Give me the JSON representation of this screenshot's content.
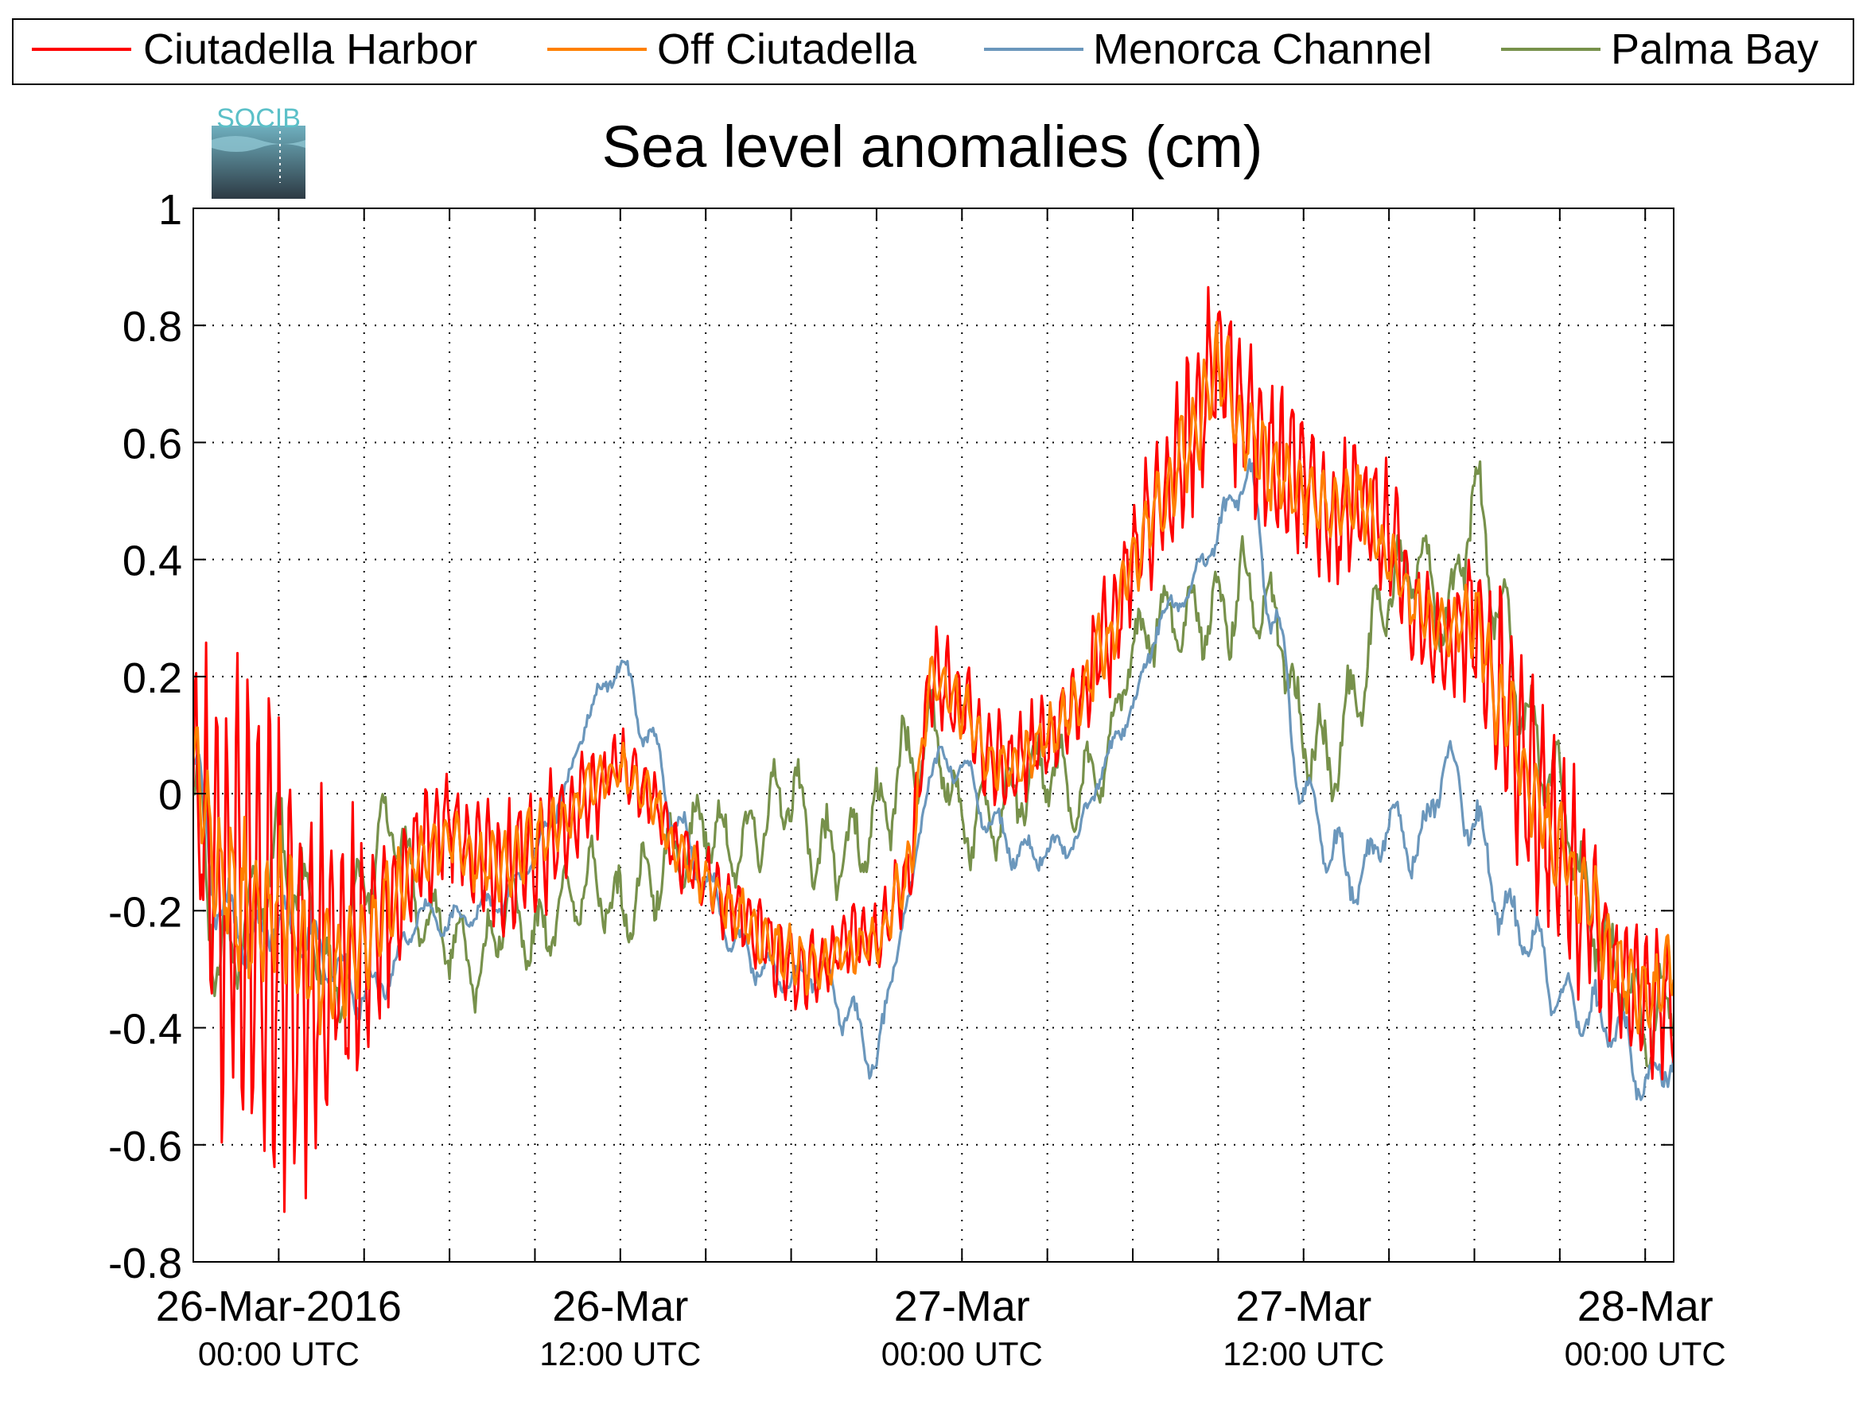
{
  "colors": {
    "ciutadella_harbor": "#ff0000",
    "off_ciutadella": "#ff8000",
    "menorca_channel": "#6b97bc",
    "palma_bay": "#77914b",
    "logo_text": "#5bc0c8"
  },
  "logo": {
    "text": "SOCIB",
    "icon": "socib-logo-icon"
  },
  "chart_data": {
    "type": "line",
    "title": "Sea level anomalies (cm)",
    "xlabel": "",
    "ylabel": "",
    "grid": true,
    "legend_position": "top",
    "x_axis": {
      "range": [
        "2016-03-25T21:00Z",
        "2016-03-28T01:00Z"
      ],
      "ticks_hours_utc": [
        "2016-03-25T21:00Z",
        "2016-03-26T00:00Z",
        "2016-03-26T03:00Z",
        "2016-03-26T06:00Z",
        "2016-03-26T09:00Z",
        "2016-03-26T12:00Z",
        "2016-03-26T15:00Z",
        "2016-03-26T18:00Z",
        "2016-03-26T21:00Z",
        "2016-03-27T00:00Z",
        "2016-03-27T03:00Z",
        "2016-03-27T06:00Z",
        "2016-03-27T09:00Z",
        "2016-03-27T12:00Z",
        "2016-03-27T15:00Z",
        "2016-03-27T18:00Z",
        "2016-03-27T21:00Z",
        "2016-03-28T00:00Z",
        "2016-03-28T03:00Z"
      ],
      "labels": [
        {
          "at": "2016-03-26T00:00Z",
          "date": "26-Mar-2016",
          "time": "00:00 UTC"
        },
        {
          "at": "2016-03-26T12:00Z",
          "date": "26-Mar",
          "time": "12:00 UTC"
        },
        {
          "at": "2016-03-27T00:00Z",
          "date": "27-Mar",
          "time": "00:00 UTC"
        },
        {
          "at": "2016-03-27T12:00Z",
          "date": "27-Mar",
          "time": "12:00 UTC"
        },
        {
          "at": "2016-03-28T00:00Z",
          "date": "28-Mar",
          "time": "00:00 UTC"
        }
      ]
    },
    "y_axis": {
      "range": [
        -0.8,
        1
      ],
      "ticks": [
        -0.8,
        -0.6,
        -0.4,
        -0.2,
        0,
        0.2,
        0.4,
        0.6,
        0.8,
        1
      ],
      "tick_labels": [
        "-0.8",
        "-0.6",
        "-0.4",
        "-0.2",
        "0",
        "0.2",
        "0.4",
        "0.6",
        "0.8",
        "1"
      ]
    },
    "series": [
      {
        "name": "Ciutadella Harbor",
        "color": "#ff0000",
        "x": [
          "2016-03-25T21:00Z",
          "2016-03-25T22:00Z",
          "2016-03-25T23:00Z",
          "2016-03-26T00:00Z",
          "2016-03-26T01:00Z",
          "2016-03-26T02:00Z",
          "2016-03-26T03:00Z",
          "2016-03-26T04:00Z",
          "2016-03-26T05:00Z",
          "2016-03-26T06:00Z",
          "2016-03-26T07:00Z",
          "2016-03-26T08:00Z",
          "2016-03-26T09:00Z",
          "2016-03-26T10:00Z",
          "2016-03-26T11:00Z",
          "2016-03-26T12:00Z",
          "2016-03-26T13:00Z",
          "2016-03-26T14:00Z",
          "2016-03-26T15:00Z",
          "2016-03-26T16:00Z",
          "2016-03-26T17:00Z",
          "2016-03-26T18:00Z",
          "2016-03-26T19:00Z",
          "2016-03-26T20:00Z",
          "2016-03-26T21:00Z",
          "2016-03-26T22:00Z",
          "2016-03-26T23:00Z",
          "2016-03-27T00:00Z",
          "2016-03-27T01:00Z",
          "2016-03-27T02:00Z",
          "2016-03-27T03:00Z",
          "2016-03-27T04:00Z",
          "2016-03-27T05:00Z",
          "2016-03-27T06:00Z",
          "2016-03-27T07:00Z",
          "2016-03-27T08:00Z",
          "2016-03-27T09:00Z",
          "2016-03-27T10:00Z",
          "2016-03-27T11:00Z",
          "2016-03-27T12:00Z",
          "2016-03-27T13:00Z",
          "2016-03-27T14:00Z",
          "2016-03-27T15:00Z",
          "2016-03-27T16:00Z",
          "2016-03-27T17:00Z",
          "2016-03-27T18:00Z",
          "2016-03-27T19:00Z",
          "2016-03-27T20:00Z",
          "2016-03-27T21:00Z",
          "2016-03-27T22:00Z",
          "2016-03-27T23:00Z",
          "2016-03-28T00:00Z",
          "2016-03-28T01:00Z"
        ],
        "values": [
          0.0,
          -0.15,
          -0.2,
          -0.25,
          -0.3,
          -0.3,
          -0.25,
          -0.2,
          -0.1,
          -0.05,
          -0.1,
          -0.15,
          -0.1,
          -0.05,
          0.0,
          0.05,
          0.0,
          -0.1,
          -0.15,
          -0.2,
          -0.25,
          -0.3,
          -0.3,
          -0.25,
          -0.25,
          -0.15,
          0.2,
          0.15,
          0.05,
          0.05,
          0.1,
          0.15,
          0.25,
          0.4,
          0.5,
          0.6,
          0.75,
          0.65,
          0.55,
          0.55,
          0.45,
          0.5,
          0.45,
          0.3,
          0.25,
          0.3,
          0.15,
          0.0,
          -0.1,
          -0.2,
          -0.3,
          -0.35,
          -0.35
        ],
        "amplitude": [
          0.25,
          0.35,
          0.45,
          0.45,
          0.35,
          0.25,
          0.2,
          0.15,
          0.1,
          0.1,
          0.1,
          0.12,
          0.12,
          0.1,
          0.08,
          0.06,
          0.06,
          0.06,
          0.06,
          0.07,
          0.07,
          0.07,
          0.06,
          0.06,
          0.06,
          0.08,
          0.08,
          0.08,
          0.08,
          0.08,
          0.08,
          0.08,
          0.1,
          0.12,
          0.12,
          0.14,
          0.15,
          0.14,
          0.14,
          0.13,
          0.12,
          0.12,
          0.1,
          0.1,
          0.1,
          0.14,
          0.18,
          0.2,
          0.18,
          0.15,
          0.12,
          0.12,
          0.12
        ]
      },
      {
        "name": "Off Ciutadella",
        "color": "#ff8000",
        "x": [
          "2016-03-25T21:00Z",
          "2016-03-25T22:00Z",
          "2016-03-25T23:00Z",
          "2016-03-26T00:00Z",
          "2016-03-26T01:00Z",
          "2016-03-26T02:00Z",
          "2016-03-26T03:00Z",
          "2016-03-26T04:00Z",
          "2016-03-26T05:00Z",
          "2016-03-26T06:00Z",
          "2016-03-26T07:00Z",
          "2016-03-26T08:00Z",
          "2016-03-26T09:00Z",
          "2016-03-26T10:00Z",
          "2016-03-26T11:00Z",
          "2016-03-26T12:00Z",
          "2016-03-26T13:00Z",
          "2016-03-26T14:00Z",
          "2016-03-26T15:00Z",
          "2016-03-26T16:00Z",
          "2016-03-26T17:00Z",
          "2016-03-26T18:00Z",
          "2016-03-26T19:00Z",
          "2016-03-26T20:00Z",
          "2016-03-26T21:00Z",
          "2016-03-26T22:00Z",
          "2016-03-26T23:00Z",
          "2016-03-27T00:00Z",
          "2016-03-27T01:00Z",
          "2016-03-27T02:00Z",
          "2016-03-27T03:00Z",
          "2016-03-27T04:00Z",
          "2016-03-27T05:00Z",
          "2016-03-27T06:00Z",
          "2016-03-27T07:00Z",
          "2016-03-27T08:00Z",
          "2016-03-27T09:00Z",
          "2016-03-27T10:00Z",
          "2016-03-27T11:00Z",
          "2016-03-27T12:00Z",
          "2016-03-27T13:00Z",
          "2016-03-27T14:00Z",
          "2016-03-27T15:00Z",
          "2016-03-27T16:00Z",
          "2016-03-27T17:00Z",
          "2016-03-27T18:00Z",
          "2016-03-27T19:00Z",
          "2016-03-27T20:00Z",
          "2016-03-27T21:00Z",
          "2016-03-27T22:00Z",
          "2016-03-27T23:00Z",
          "2016-03-28T00:00Z",
          "2016-03-28T01:00Z"
        ],
        "values": [
          0.05,
          -0.15,
          -0.2,
          -0.2,
          -0.28,
          -0.3,
          -0.25,
          -0.18,
          -0.1,
          -0.08,
          -0.12,
          -0.12,
          -0.08,
          -0.05,
          0.02,
          0.04,
          0.0,
          -0.1,
          -0.15,
          -0.2,
          -0.25,
          -0.28,
          -0.3,
          -0.27,
          -0.25,
          -0.15,
          0.2,
          0.15,
          0.05,
          0.05,
          0.1,
          0.15,
          0.25,
          0.4,
          0.5,
          0.6,
          0.72,
          0.62,
          0.55,
          0.52,
          0.48,
          0.5,
          0.4,
          0.32,
          0.28,
          0.3,
          0.15,
          0.0,
          -0.1,
          -0.18,
          -0.3,
          -0.35,
          -0.3
        ],
        "amplitude": [
          0.1,
          0.12,
          0.15,
          0.15,
          0.12,
          0.1,
          0.08,
          0.07,
          0.05,
          0.05,
          0.05,
          0.06,
          0.06,
          0.05,
          0.04,
          0.04,
          0.04,
          0.04,
          0.04,
          0.05,
          0.05,
          0.05,
          0.04,
          0.04,
          0.04,
          0.05,
          0.05,
          0.05,
          0.05,
          0.05,
          0.05,
          0.05,
          0.06,
          0.06,
          0.06,
          0.07,
          0.08,
          0.07,
          0.07,
          0.07,
          0.06,
          0.06,
          0.05,
          0.05,
          0.05,
          0.06,
          0.08,
          0.08,
          0.08,
          0.07,
          0.06,
          0.06,
          0.06
        ]
      },
      {
        "name": "Menorca Channel",
        "color": "#6b97bc",
        "x": [
          "2016-03-25T21:00Z",
          "2016-03-25T22:00Z",
          "2016-03-25T23:00Z",
          "2016-03-26T00:00Z",
          "2016-03-26T01:00Z",
          "2016-03-26T02:00Z",
          "2016-03-26T03:00Z",
          "2016-03-26T04:00Z",
          "2016-03-26T05:00Z",
          "2016-03-26T06:00Z",
          "2016-03-26T07:00Z",
          "2016-03-26T08:00Z",
          "2016-03-26T09:00Z",
          "2016-03-26T10:00Z",
          "2016-03-26T11:00Z",
          "2016-03-26T12:00Z",
          "2016-03-26T13:00Z",
          "2016-03-26T14:00Z",
          "2016-03-26T15:00Z",
          "2016-03-26T16:00Z",
          "2016-03-26T17:00Z",
          "2016-03-26T18:00Z",
          "2016-03-26T19:00Z",
          "2016-03-26T20:00Z",
          "2016-03-26T21:00Z",
          "2016-03-26T22:00Z",
          "2016-03-26T23:00Z",
          "2016-03-27T00:00Z",
          "2016-03-27T01:00Z",
          "2016-03-27T02:00Z",
          "2016-03-27T03:00Z",
          "2016-03-27T04:00Z",
          "2016-03-27T05:00Z",
          "2016-03-27T06:00Z",
          "2016-03-27T07:00Z",
          "2016-03-27T08:00Z",
          "2016-03-27T09:00Z",
          "2016-03-27T10:00Z",
          "2016-03-27T11:00Z",
          "2016-03-27T12:00Z",
          "2016-03-27T13:00Z",
          "2016-03-27T14:00Z",
          "2016-03-27T15:00Z",
          "2016-03-27T16:00Z",
          "2016-03-27T17:00Z",
          "2016-03-27T18:00Z",
          "2016-03-27T19:00Z",
          "2016-03-27T20:00Z",
          "2016-03-27T21:00Z",
          "2016-03-27T22:00Z",
          "2016-03-27T23:00Z",
          "2016-03-28T00:00Z",
          "2016-03-28T01:00Z"
        ],
        "values": [
          0.05,
          -0.2,
          -0.25,
          -0.22,
          -0.25,
          -0.3,
          -0.35,
          -0.3,
          -0.2,
          -0.22,
          -0.2,
          -0.18,
          -0.1,
          0.0,
          0.15,
          0.22,
          0.1,
          -0.05,
          -0.15,
          -0.25,
          -0.3,
          -0.32,
          -0.3,
          -0.38,
          -0.45,
          -0.2,
          0.05,
          0.05,
          -0.05,
          -0.1,
          -0.1,
          -0.08,
          0.05,
          0.15,
          0.3,
          0.35,
          0.45,
          0.55,
          0.3,
          0.0,
          -0.1,
          -0.15,
          -0.05,
          -0.1,
          0.05,
          -0.05,
          -0.2,
          -0.25,
          -0.35,
          -0.38,
          -0.4,
          -0.5,
          -0.45
        ],
        "amplitude": [
          0.05,
          0.05,
          0.05,
          0.05,
          0.05,
          0.04,
          0.04,
          0.04,
          0.03,
          0.03,
          0.03,
          0.03,
          0.03,
          0.03,
          0.03,
          0.03,
          0.03,
          0.03,
          0.03,
          0.03,
          0.03,
          0.03,
          0.03,
          0.04,
          0.05,
          0.03,
          0.03,
          0.03,
          0.03,
          0.03,
          0.03,
          0.03,
          0.03,
          0.03,
          0.03,
          0.03,
          0.04,
          0.04,
          0.04,
          0.04,
          0.05,
          0.05,
          0.05,
          0.05,
          0.05,
          0.05,
          0.05,
          0.05,
          0.05,
          0.05,
          0.05,
          0.05,
          0.05
        ]
      },
      {
        "name": "Palma Bay",
        "color": "#77914b",
        "x": [
          "2016-03-25T21:00Z",
          "2016-03-25T22:00Z",
          "2016-03-25T23:00Z",
          "2016-03-26T00:00Z",
          "2016-03-26T01:00Z",
          "2016-03-26T02:00Z",
          "2016-03-26T03:00Z",
          "2016-03-26T04:00Z",
          "2016-03-26T05:00Z",
          "2016-03-26T06:00Z",
          "2016-03-26T07:00Z",
          "2016-03-26T08:00Z",
          "2016-03-26T09:00Z",
          "2016-03-26T10:00Z",
          "2016-03-26T11:00Z",
          "2016-03-26T12:00Z",
          "2016-03-26T13:00Z",
          "2016-03-26T14:00Z",
          "2016-03-26T15:00Z",
          "2016-03-26T16:00Z",
          "2016-03-26T17:00Z",
          "2016-03-26T18:00Z",
          "2016-03-26T19:00Z",
          "2016-03-26T20:00Z",
          "2016-03-26T21:00Z",
          "2016-03-26T22:00Z",
          "2016-03-26T23:00Z",
          "2016-03-27T00:00Z",
          "2016-03-27T01:00Z",
          "2016-03-27T02:00Z",
          "2016-03-27T03:00Z",
          "2016-03-27T04:00Z",
          "2016-03-27T05:00Z",
          "2016-03-27T06:00Z",
          "2016-03-27T07:00Z",
          "2016-03-27T08:00Z",
          "2016-03-27T09:00Z",
          "2016-03-27T10:00Z",
          "2016-03-27T11:00Z",
          "2016-03-27T12:00Z",
          "2016-03-27T13:00Z",
          "2016-03-27T14:00Z",
          "2016-03-27T15:00Z",
          "2016-03-27T16:00Z",
          "2016-03-27T17:00Z",
          "2016-03-27T18:00Z",
          "2016-03-27T19:00Z",
          "2016-03-27T20:00Z",
          "2016-03-27T21:00Z",
          "2016-03-27T22:00Z",
          "2016-03-27T23:00Z",
          "2016-03-28T00:00Z",
          "2016-03-28T01:00Z"
        ],
        "values": [
          0.0,
          -0.3,
          -0.2,
          -0.1,
          -0.2,
          -0.35,
          -0.15,
          -0.05,
          -0.2,
          -0.25,
          -0.3,
          -0.2,
          -0.25,
          -0.2,
          -0.15,
          -0.2,
          -0.15,
          -0.1,
          -0.05,
          -0.1,
          -0.05,
          0.0,
          -0.1,
          -0.1,
          -0.05,
          0.05,
          0.1,
          -0.05,
          -0.05,
          0.0,
          0.05,
          0.0,
          0.05,
          0.25,
          0.3,
          0.3,
          0.3,
          0.35,
          0.3,
          0.1,
          0.05,
          0.2,
          0.35,
          0.4,
          0.3,
          0.5,
          0.3,
          0.1,
          0.0,
          -0.2,
          -0.3,
          -0.4,
          -0.35
        ],
        "amplitude": [
          0.1,
          0.1,
          0.1,
          0.1,
          0.1,
          0.08,
          0.08,
          0.08,
          0.07,
          0.07,
          0.07,
          0.07,
          0.07,
          0.07,
          0.07,
          0.07,
          0.07,
          0.07,
          0.07,
          0.07,
          0.08,
          0.08,
          0.08,
          0.08,
          0.08,
          0.08,
          0.07,
          0.07,
          0.07,
          0.07,
          0.07,
          0.07,
          0.07,
          0.07,
          0.07,
          0.07,
          0.08,
          0.08,
          0.08,
          0.08,
          0.08,
          0.08,
          0.08,
          0.08,
          0.08,
          0.08,
          0.08,
          0.08,
          0.08,
          0.08,
          0.08,
          0.08,
          0.08
        ]
      }
    ]
  }
}
